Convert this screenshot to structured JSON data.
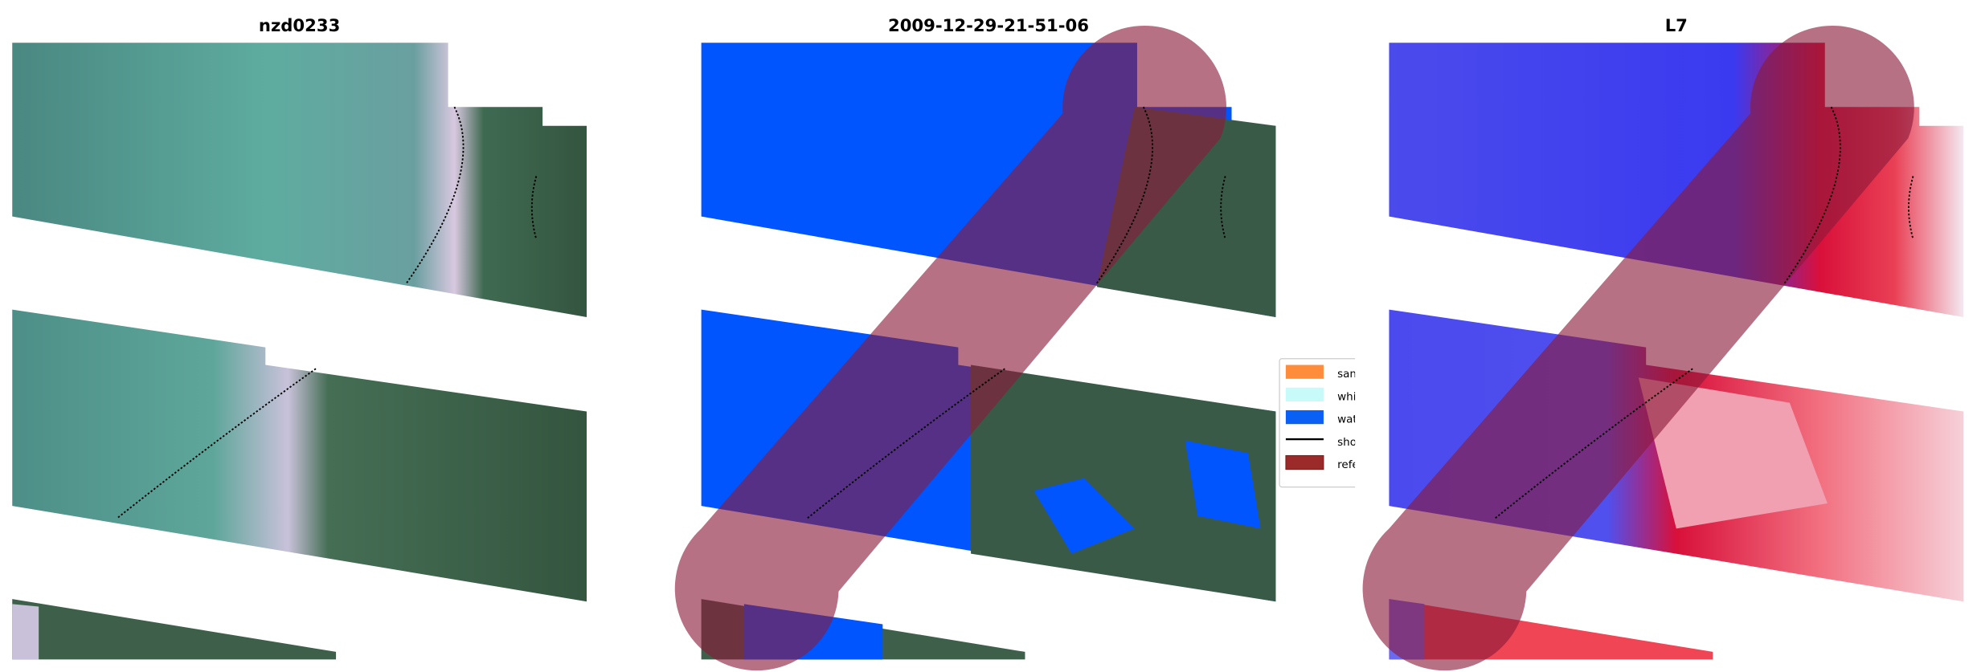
{
  "panels": [
    {
      "title": "nzd0233",
      "kind": "rgb"
    },
    {
      "title": "2009-12-29-21-51-06",
      "kind": "classified"
    },
    {
      "title": "L7",
      "kind": "index"
    }
  ],
  "legend": {
    "placement": "between panel 2 and panel 3 (partly covered)",
    "items": [
      {
        "label": "sand",
        "visible_text": "sand",
        "color": "#ff8c3a"
      },
      {
        "label": "whitewater",
        "visible_text": "whitew",
        "color": "#c8fafa"
      },
      {
        "label": "water",
        "visible_text": "water",
        "color": "#0a5ff5"
      },
      {
        "label": "shoreline",
        "visible_text": "shoreli",
        "color": "#000000"
      },
      {
        "label": "reference",
        "visible_text": "referer",
        "color": "#9b2a2a"
      }
    ]
  },
  "colors": {
    "water_rgb": "#4f8f88",
    "land_rgb": "#3b5c49",
    "water_class": "#0055ff",
    "reference_buffer": "#8b1a3a",
    "index_low": "#4a4aee",
    "index_high": "#e8233a"
  }
}
